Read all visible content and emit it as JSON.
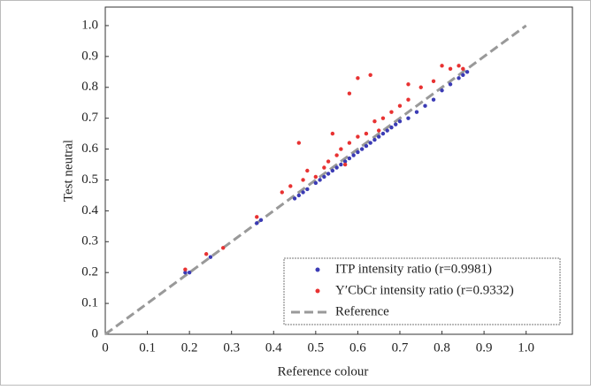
{
  "chart_data": {
    "type": "scatter",
    "xlabel": "Reference colour",
    "ylabel": "Test neutral",
    "xlim": [
      0,
      1.11
    ],
    "ylim": [
      0,
      1.06
    ],
    "xticks": [
      0,
      0.1,
      0.2,
      0.3,
      0.4,
      0.5,
      0.6,
      0.7,
      0.8,
      0.9,
      {
        "value": 1,
        "label": "1.0"
      }
    ],
    "yticks": [
      0,
      0.1,
      0.2,
      0.3,
      0.4,
      0.5,
      0.6,
      0.7,
      0.8,
      0.9,
      {
        "value": 1,
        "label": "1.0"
      }
    ],
    "legend": "lower right",
    "series": [
      {
        "name": "ITP intensity ratio (r=0.9981)",
        "color": "#3b3bb5",
        "x": [
          0.19,
          0.2,
          0.25,
          0.36,
          0.37,
          0.45,
          0.46,
          0.47,
          0.48,
          0.5,
          0.51,
          0.52,
          0.53,
          0.54,
          0.55,
          0.56,
          0.57,
          0.58,
          0.59,
          0.6,
          0.61,
          0.62,
          0.63,
          0.64,
          0.65,
          0.66,
          0.67,
          0.68,
          0.69,
          0.7,
          0.72,
          0.74,
          0.76,
          0.78,
          0.8,
          0.82,
          0.84,
          0.85,
          0.86
        ],
        "y": [
          0.2,
          0.2,
          0.25,
          0.36,
          0.37,
          0.44,
          0.45,
          0.46,
          0.47,
          0.49,
          0.5,
          0.51,
          0.52,
          0.53,
          0.54,
          0.55,
          0.56,
          0.57,
          0.58,
          0.59,
          0.6,
          0.61,
          0.62,
          0.63,
          0.64,
          0.65,
          0.66,
          0.67,
          0.68,
          0.69,
          0.7,
          0.72,
          0.74,
          0.76,
          0.79,
          0.81,
          0.83,
          0.84,
          0.85
        ]
      },
      {
        "name": "Y′CbCr intensity ratio (r=0.9332)",
        "color": "#e83232",
        "x": [
          0.19,
          0.24,
          0.28,
          0.36,
          0.42,
          0.44,
          0.46,
          0.47,
          0.48,
          0.5,
          0.52,
          0.53,
          0.54,
          0.55,
          0.56,
          0.57,
          0.58,
          0.58,
          0.6,
          0.6,
          0.62,
          0.63,
          0.64,
          0.65,
          0.66,
          0.68,
          0.7,
          0.72,
          0.72,
          0.75,
          0.78,
          0.8,
          0.82,
          0.84,
          0.85
        ],
        "y": [
          0.21,
          0.26,
          0.28,
          0.38,
          0.46,
          0.48,
          0.62,
          0.5,
          0.53,
          0.51,
          0.54,
          0.56,
          0.65,
          0.58,
          0.6,
          0.55,
          0.78,
          0.62,
          0.64,
          0.83,
          0.65,
          0.84,
          0.69,
          0.66,
          0.7,
          0.72,
          0.74,
          0.76,
          0.81,
          0.8,
          0.82,
          0.87,
          0.86,
          0.87,
          0.86
        ]
      }
    ],
    "reference": {
      "name": "Reference",
      "color": "#999999",
      "x": [
        0,
        1
      ],
      "y": [
        0,
        1
      ]
    }
  }
}
